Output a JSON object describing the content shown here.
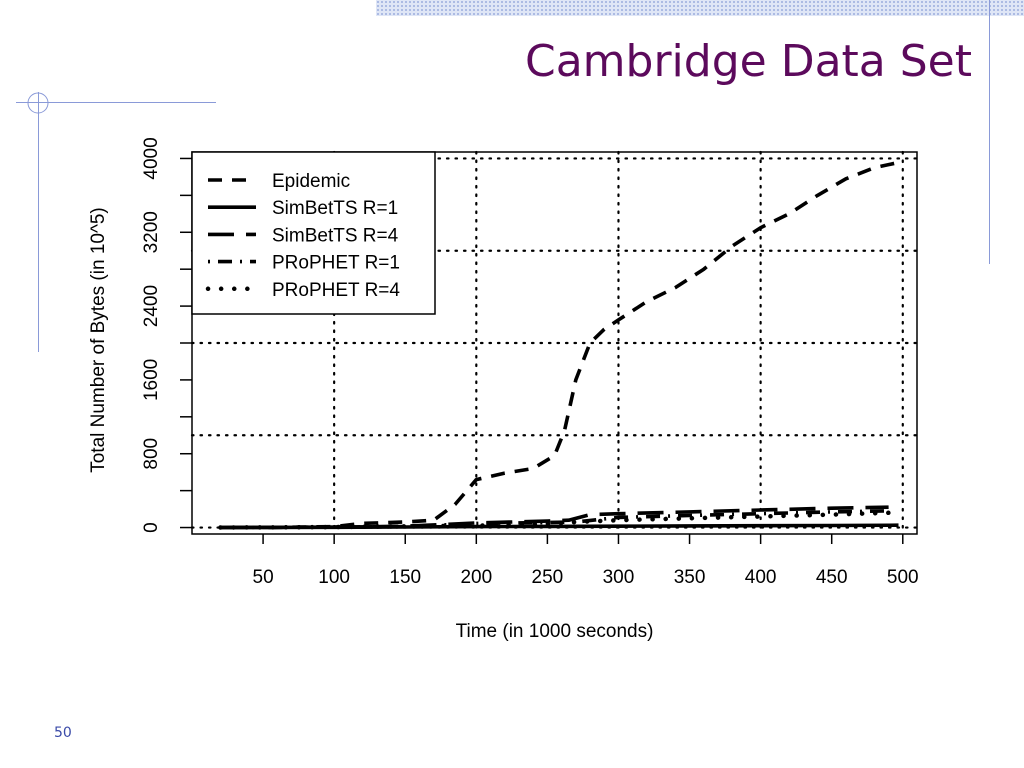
{
  "slide": {
    "title": "Cambridge Data Set",
    "page_number": "50"
  },
  "colors": {
    "title": "#5c0a5c",
    "accent_lines": "#8a9ad8",
    "page_number": "#3a4aa8"
  },
  "chart_data": {
    "type": "line",
    "title": "",
    "xlabel": "Time (in 1000 seconds)",
    "ylabel": "Total Number of Bytes (in 10^5)",
    "xlim": [
      0,
      510
    ],
    "ylim": [
      -70,
      4070
    ],
    "x_ticks": [
      50,
      100,
      150,
      200,
      250,
      300,
      350,
      400,
      450,
      500
    ],
    "y_ticks": [
      0,
      800,
      1600,
      2400,
      3200,
      4000
    ],
    "grid": "dotted",
    "grid_x": [
      100,
      200,
      300,
      400,
      500
    ],
    "grid_y": [
      0,
      1000,
      2000,
      3000,
      4000
    ],
    "legend_position": "top-left",
    "series": [
      {
        "name": "Epidemic",
        "style": "dashed",
        "x": [
          20,
          60,
          100,
          120,
          150,
          170,
          185,
          200,
          220,
          240,
          255,
          262,
          270,
          280,
          290,
          300,
          320,
          340,
          360,
          380,
          400,
          420,
          440,
          460,
          480,
          495
        ],
        "y": [
          0,
          2,
          10,
          45,
          60,
          80,
          250,
          520,
          590,
          640,
          780,
          1050,
          1600,
          2000,
          2150,
          2250,
          2450,
          2600,
          2800,
          3050,
          3250,
          3400,
          3600,
          3780,
          3900,
          3950
        ]
      },
      {
        "name": "SimBetTS R=1",
        "style": "solid",
        "x": [
          20,
          100,
          150,
          200,
          250,
          300,
          350,
          400,
          450,
          497
        ],
        "y": [
          0,
          3,
          6,
          10,
          12,
          15,
          18,
          20,
          22,
          25
        ]
      },
      {
        "name": "SimBetTS R=4",
        "style": "long-dashed",
        "x": [
          20,
          100,
          150,
          180,
          200,
          250,
          265,
          280,
          300,
          350,
          400,
          450,
          490
        ],
        "y": [
          0,
          5,
          15,
          35,
          50,
          70,
          80,
          140,
          150,
          170,
          190,
          210,
          220
        ]
      },
      {
        "name": "PRoPHET R=1",
        "style": "dot-dash",
        "x": [
          20,
          100,
          150,
          200,
          250,
          270,
          300,
          350,
          400,
          450,
          490
        ],
        "y": [
          0,
          5,
          10,
          45,
          55,
          60,
          110,
          130,
          150,
          170,
          180
        ]
      },
      {
        "name": "PRoPHET R=4",
        "style": "dotted",
        "x": [
          20,
          100,
          200,
          250,
          270,
          300,
          350,
          400,
          450,
          490
        ],
        "y": [
          0,
          5,
          20,
          40,
          60,
          80,
          100,
          120,
          140,
          160
        ]
      }
    ]
  }
}
